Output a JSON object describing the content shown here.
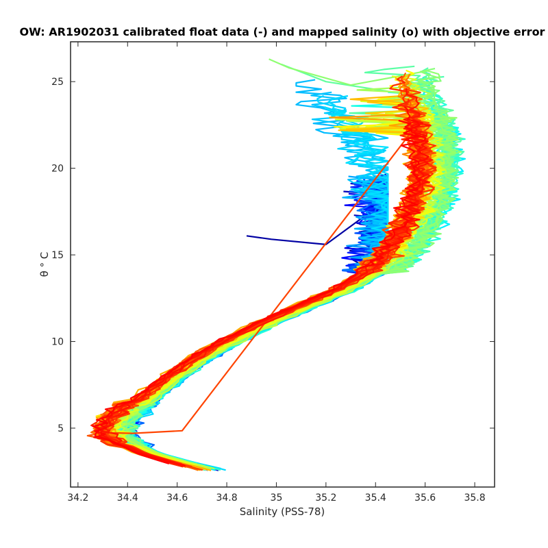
{
  "chart_data": {
    "type": "line",
    "title": "OW: AR1902031 calibrated float data (-) and mapped salinity (o) with objective error",
    "xlabel": "Salinity (PSS-78)",
    "ylabel": "θ ° C",
    "xlim": [
      34.17,
      35.88
    ],
    "ylim": [
      1.6,
      27.3
    ],
    "xticks": [
      34.2,
      34.4,
      34.6,
      34.8,
      35,
      35.2,
      35.4,
      35.6,
      35.8
    ],
    "xtick_labels": [
      "34.2",
      "34.4",
      "34.6",
      "34.8",
      "35",
      "35.2",
      "35.4",
      "35.6",
      "35.8"
    ],
    "yticks": [
      5,
      10,
      15,
      20,
      25
    ],
    "ytick_labels": [
      "5",
      "10",
      "15",
      "20",
      "25"
    ],
    "grid": false,
    "legend": "none",
    "colormap": "jet",
    "colormap_colors": [
      "#00008f",
      "#0000ff",
      "#0080ff",
      "#00ffff",
      "#80ff80",
      "#ffff00",
      "#ff8000",
      "#ff0000"
    ],
    "series_count": 120,
    "mean_profile": {
      "theta": [
        2.6,
        3.0,
        3.5,
        4.0,
        4.5,
        5.0,
        5.5,
        6.0,
        6.5,
        7.0,
        8.0,
        9.0,
        10.0,
        11.0,
        12.0,
        13.0,
        14.0,
        15.0,
        16.0,
        17.0,
        18.0,
        19.0,
        20.0,
        21.0,
        22.0,
        23.0,
        24.0,
        25.0
      ],
      "salinity": [
        34.7,
        34.6,
        34.5,
        34.43,
        34.38,
        34.37,
        34.39,
        34.43,
        34.47,
        34.51,
        34.6,
        34.7,
        34.82,
        34.96,
        35.12,
        35.28,
        35.4,
        35.47,
        35.52,
        35.56,
        35.59,
        35.61,
        35.62,
        35.62,
        35.61,
        35.59,
        35.57,
        35.55
      ]
    },
    "features": {
      "low_salinity_intrusion": {
        "salinity": [
          34.88,
          35.45
        ],
        "theta": [
          14.5,
          20.0
        ]
      },
      "warm_surface_tail": {
        "salinity": [
          34.97,
          35.62
        ],
        "theta": [
          22.0,
          26.3
        ]
      }
    }
  }
}
